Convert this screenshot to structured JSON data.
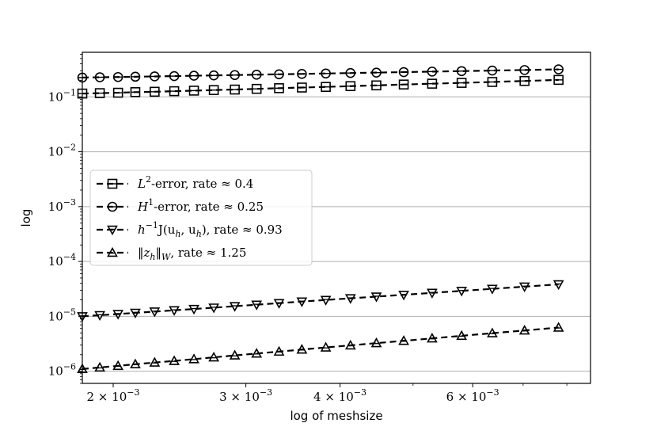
{
  "chart_data": {
    "type": "line",
    "xlabel": "log of meshsize",
    "ylabel": "log",
    "x_scale": "log",
    "y_scale": "log",
    "xlim": [
      0.00182,
      0.0086
    ],
    "ylim": [
      6e-07,
      0.65
    ],
    "grid": "horizontal major",
    "legend_position": "center-left",
    "x_ticks": [
      {
        "value": 0.002,
        "mant": "2",
        "exp": "−3"
      },
      {
        "value": 0.003,
        "mant": "3",
        "exp": "−3"
      },
      {
        "value": 0.004,
        "mant": "4",
        "exp": "−3"
      },
      {
        "value": 0.006,
        "mant": "6",
        "exp": "−3"
      }
    ],
    "y_ticks": [
      {
        "value": 1e-06,
        "exp": "−6"
      },
      {
        "value": 1e-05,
        "exp": "−5"
      },
      {
        "value": 0.0001,
        "exp": "−4"
      },
      {
        "value": 0.001,
        "exp": "−3"
      },
      {
        "value": 0.01,
        "exp": "−2"
      },
      {
        "value": 0.1,
        "exp": "−1"
      }
    ],
    "x": [
      0.00182,
      0.00192,
      0.00203,
      0.00214,
      0.00227,
      0.00241,
      0.00256,
      0.00272,
      0.0029,
      0.0031,
      0.00332,
      0.00356,
      0.00383,
      0.00413,
      0.00447,
      0.00486,
      0.0053,
      0.0058,
      0.00637,
      0.00703,
      0.0078
    ],
    "series": [
      {
        "name": "L2-error",
        "marker": "square",
        "label": {
          "var": "L",
          "sup": "2",
          "rest": "-error, rate ≈ 0.4"
        },
        "values": [
          0.115,
          0.117,
          0.119,
          0.122,
          0.124,
          0.127,
          0.13,
          0.133,
          0.136,
          0.14,
          0.144,
          0.148,
          0.152,
          0.157,
          0.162,
          0.168,
          0.174,
          0.18,
          0.187,
          0.195,
          0.204
        ]
      },
      {
        "name": "H1-error",
        "marker": "circle",
        "label": {
          "var": "H",
          "sup": "1",
          "rest": "-error, rate ≈ 0.25"
        },
        "values": [
          0.225,
          0.228,
          0.23,
          0.233,
          0.236,
          0.239,
          0.243,
          0.246,
          0.25,
          0.254,
          0.258,
          0.262,
          0.267,
          0.272,
          0.277,
          0.283,
          0.289,
          0.295,
          0.302,
          0.309,
          0.317
        ]
      },
      {
        "name": "h^-1 J(u_h,u_h)",
        "marker": "triangle-down",
        "label": {
          "var": "h",
          "sup": "−1",
          "rest": "J(u",
          "sub": "h",
          "rest2": ", u",
          "sub2": "h",
          "rest3": "), rate ≈ 0.93"
        },
        "values": [
          1e-05,
          1.05e-05,
          1.1e-05,
          1.16e-05,
          1.22e-05,
          1.29e-05,
          1.36e-05,
          1.44e-05,
          1.53e-05,
          1.63e-05,
          1.74e-05,
          1.86e-05,
          1.99e-05,
          2.13e-05,
          2.29e-05,
          2.47e-05,
          2.68e-05,
          2.91e-05,
          3.17e-05,
          3.48e-05,
          3.83e-05
        ]
      },
      {
        "name": "||z_h||_W",
        "marker": "triangle-up",
        "label": {
          "var": "‖z",
          "sub": "h",
          "rest": "‖",
          "sub2": "W",
          "rest2": ", rate ≈ 1.25"
        },
        "values": [
          1.1e-06,
          1.17e-06,
          1.25e-06,
          1.34e-06,
          1.44e-06,
          1.54e-06,
          1.66e-06,
          1.79e-06,
          1.94e-06,
          2.1e-06,
          2.28e-06,
          2.48e-06,
          2.71e-06,
          2.96e-06,
          3.25e-06,
          3.58e-06,
          3.97e-06,
          4.42e-06,
          4.93e-06,
          5.53e-06,
          6.25e-06
        ]
      }
    ]
  }
}
